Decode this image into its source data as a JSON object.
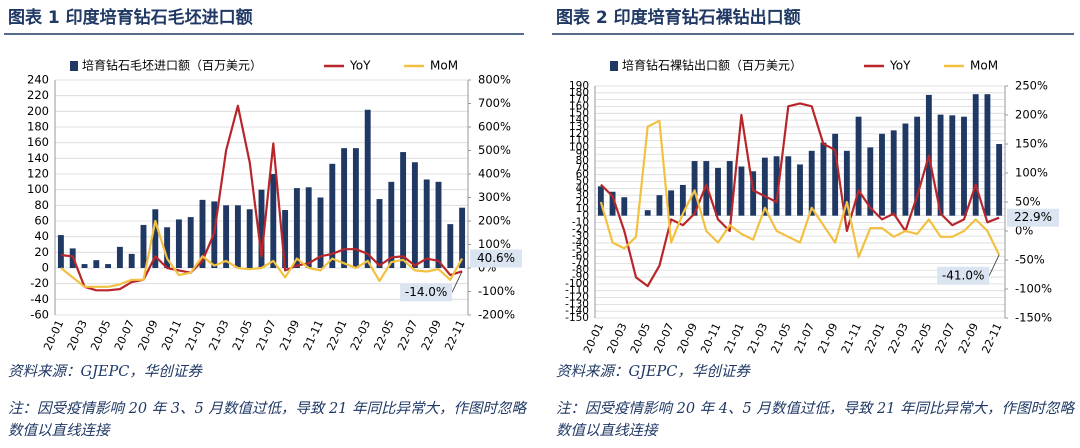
{
  "chart_data": [
    {
      "type": "bar",
      "title": "图表 1 印度培育钻石毛坯进口额",
      "categories": [
        "20-01",
        null,
        "20-03",
        null,
        "20-05",
        null,
        "20-07",
        null,
        "20-09",
        null,
        "20-11",
        null,
        "21-01",
        null,
        "21-03",
        null,
        "21-05",
        null,
        "21-07",
        null,
        "21-09",
        null,
        "21-11",
        null,
        "22-01",
        null,
        "22-03",
        null,
        "22-05",
        null,
        "22-07",
        null,
        "22-09",
        null,
        "22-11"
      ],
      "series": [
        {
          "name": "培育钻石毛坯进口额（百万美元）",
          "type": "bar",
          "color": "#1f3864",
          "axis": "y",
          "values": [
            42,
            25,
            5,
            10,
            5,
            27,
            18,
            55,
            75,
            52,
            62,
            65,
            87,
            85,
            80,
            80,
            75,
            100,
            120,
            74,
            102,
            103,
            90,
            133,
            153,
            153,
            202,
            88,
            110,
            148,
            135,
            113,
            110,
            56,
            77
          ]
        },
        {
          "name": "YoY",
          "type": "line",
          "color": "#b8262b",
          "axis": "y2",
          "values": [
            55,
            50,
            -80,
            -95,
            -95,
            -90,
            -60,
            -50,
            50,
            0,
            -10,
            -20,
            30,
            150,
            500,
            690,
            450,
            50,
            530,
            -10,
            10,
            20,
            50,
            60,
            80,
            80,
            60,
            10,
            45,
            50,
            10,
            40,
            30,
            -30,
            -14
          ],
          "value_labels": [
            null,
            null,
            null,
            null,
            null,
            null,
            null,
            null,
            null,
            null,
            null,
            null,
            null,
            null,
            null,
            null,
            null,
            null,
            null,
            null,
            null,
            null,
            null,
            null,
            null,
            null,
            null,
            null,
            null,
            null,
            null,
            null,
            null,
            null,
            "-14.0%"
          ]
        },
        {
          "name": "MoM",
          "type": "line",
          "color": "#f2c141",
          "axis": "y2",
          "values": [
            0,
            -40,
            -80,
            -80,
            -80,
            -70,
            -50,
            -50,
            200,
            40,
            -30,
            -20,
            50,
            10,
            30,
            0,
            -5,
            0,
            30,
            -40,
            40,
            0,
            -10,
            40,
            20,
            0,
            30,
            -55,
            25,
            35,
            -10,
            -15,
            -5,
            -50,
            40.6
          ],
          "value_labels": [
            null,
            null,
            null,
            null,
            null,
            null,
            null,
            null,
            null,
            null,
            null,
            null,
            null,
            null,
            null,
            null,
            null,
            null,
            null,
            null,
            null,
            null,
            null,
            null,
            null,
            null,
            null,
            null,
            null,
            null,
            null,
            null,
            null,
            null,
            "40.6%"
          ]
        }
      ],
      "ylim": [
        -60,
        240
      ],
      "yticks": [
        -60,
        -40,
        -20,
        0,
        20,
        40,
        60,
        80,
        100,
        120,
        140,
        160,
        180,
        200,
        220,
        240
      ],
      "y2lim": [
        -200,
        800
      ],
      "y2ticks": [
        {
          "value": -200,
          "label": "-200%"
        },
        {
          "value": -100,
          "label": "-100%"
        },
        {
          "value": 0,
          "label": "0%"
        },
        {
          "value": 100,
          "label": "100%"
        },
        {
          "value": 200,
          "label": "200%"
        },
        {
          "value": 300,
          "label": "300%"
        },
        {
          "value": 400,
          "label": "400%"
        },
        {
          "value": 500,
          "label": "500%"
        },
        {
          "value": 600,
          "label": "600%"
        },
        {
          "value": 700,
          "label": "700%"
        },
        {
          "value": 800,
          "label": "800%"
        }
      ],
      "grid": true,
      "source": "资料来源：GJEPC，华创证券",
      "note": "注：因受疫情影响 20 年 3、5 月数值过低，导致 21 年同比异常大，作图时忽略数值以直线连接"
    },
    {
      "type": "bar",
      "title": "图表 2 印度培育钻石裸钻出口额",
      "categories": [
        "20-01",
        null,
        "20-03",
        null,
        "20-05",
        null,
        "20-07",
        null,
        "20-09",
        null,
        "20-11",
        null,
        "21-01",
        null,
        "21-03",
        null,
        "21-05",
        null,
        "21-07",
        null,
        "21-09",
        null,
        "21-11",
        null,
        "22-01",
        null,
        "22-03",
        null,
        "22-05",
        null,
        "22-07",
        null,
        "22-09",
        null,
        "22-11"
      ],
      "series": [
        {
          "name": "培育钻石裸钻出口额（百万美元）",
          "type": "bar",
          "color": "#1f3864",
          "axis": "y",
          "values": [
            43,
            35,
            27,
            0,
            8,
            30,
            37,
            45,
            80,
            80,
            70,
            80,
            72,
            65,
            85,
            87,
            87,
            75,
            95,
            107,
            120,
            95,
            145,
            100,
            120,
            125,
            135,
            145,
            177,
            148,
            147,
            145,
            178,
            178,
            105
          ]
        },
        {
          "name": "YoY",
          "type": "line",
          "color": "#b8262b",
          "axis": "y2",
          "values": [
            80,
            60,
            0,
            -80,
            -95,
            -60,
            20,
            10,
            30,
            80,
            20,
            0,
            200,
            70,
            60,
            50,
            215,
            220,
            215,
            150,
            140,
            0,
            70,
            40,
            20,
            30,
            0,
            60,
            130,
            30,
            10,
            20,
            80,
            15,
            22.9
          ],
          "value_labels": [
            null,
            null,
            null,
            null,
            null,
            null,
            null,
            null,
            null,
            null,
            null,
            null,
            null,
            null,
            null,
            null,
            null,
            null,
            null,
            null,
            null,
            null,
            null,
            null,
            null,
            null,
            null,
            null,
            null,
            null,
            null,
            null,
            null,
            null,
            "22.9%"
          ]
        },
        {
          "name": "MoM",
          "type": "line",
          "color": "#f2c141",
          "axis": "y2",
          "values": [
            50,
            -20,
            -30,
            -10,
            180,
            190,
            -20,
            30,
            70,
            0,
            -20,
            10,
            -5,
            -15,
            40,
            0,
            -10,
            -20,
            40,
            10,
            -20,
            50,
            -45,
            5,
            5,
            -10,
            0,
            -5,
            20,
            -10,
            -10,
            0,
            20,
            0,
            -41
          ],
          "value_labels": [
            null,
            null,
            null,
            null,
            null,
            null,
            null,
            null,
            null,
            null,
            null,
            null,
            null,
            null,
            null,
            null,
            null,
            null,
            null,
            null,
            null,
            null,
            null,
            null,
            null,
            null,
            null,
            null,
            null,
            null,
            null,
            null,
            null,
            null,
            "-41.0%"
          ]
        }
      ],
      "ylim": [
        -150,
        190
      ],
      "yticks": [
        -150,
        -140,
        -130,
        -120,
        -110,
        -100,
        -90,
        -80,
        -70,
        -60,
        -50,
        -40,
        -30,
        -20,
        -10,
        0,
        10,
        20,
        30,
        40,
        50,
        60,
        70,
        80,
        90,
        100,
        110,
        120,
        130,
        140,
        150,
        160,
        170,
        180,
        190
      ],
      "y2lim": [
        -150,
        250
      ],
      "y2ticks": [
        {
          "value": -150,
          "label": "-150%"
        },
        {
          "value": -100,
          "label": "-100%"
        },
        {
          "value": -50,
          "label": "-50%"
        },
        {
          "value": 0,
          "label": "0%"
        },
        {
          "value": 50,
          "label": "50%"
        },
        {
          "value": 100,
          "label": "100%"
        },
        {
          "value": 150,
          "label": "150%"
        },
        {
          "value": 200,
          "label": "200%"
        },
        {
          "value": 250,
          "label": "250%"
        }
      ],
      "grid": true,
      "source": "资料来源：GJEPC，华创证券",
      "note": "注：因受疫情影响 20 年 4、5 月数值过低，导致 21 年同比异常大，作图时忽略数值以直线连接"
    }
  ]
}
